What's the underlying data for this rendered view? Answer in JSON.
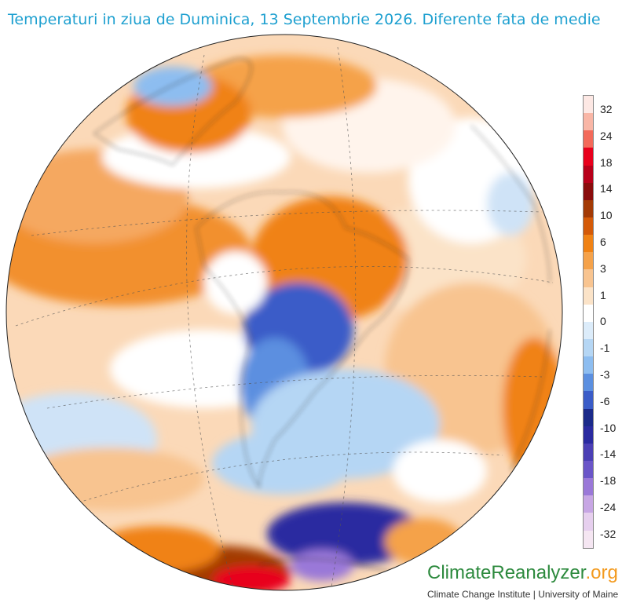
{
  "title": "Temperaturi in ziua de Duminica, 13 Septembrie 2026. Diferente fata de medie",
  "legend": {
    "labels": [
      "32",
      "24",
      "18",
      "14",
      "10",
      "6",
      "3",
      "1",
      "0",
      "-1",
      "-3",
      "-6",
      "-10",
      "-14",
      "-18",
      "-24",
      "-32"
    ],
    "colors": [
      "#fde8e4",
      "#f9b6a6",
      "#f36a5a",
      "#e8001c",
      "#b8001a",
      "#8a0c0c",
      "#a33a05",
      "#d45a08",
      "#f08214",
      "#f5a24a",
      "#f8c490",
      "#fbe3c8",
      "#ffffff",
      "#dcecfa",
      "#b5d6f4",
      "#8dbdf0",
      "#5b8fe0",
      "#3a5cc8",
      "#1b2a8a",
      "#2a2aa0",
      "#4b3fb5",
      "#6a55c8",
      "#9a78d8",
      "#c7a6e4",
      "#e6cfee",
      "#f5e6f2"
    ]
  },
  "brand": {
    "part1": "Climate",
    "part2": "Reanalyzer",
    "part3": ".org",
    "subtitle": "Climate Change Institute | University of Maine"
  }
}
